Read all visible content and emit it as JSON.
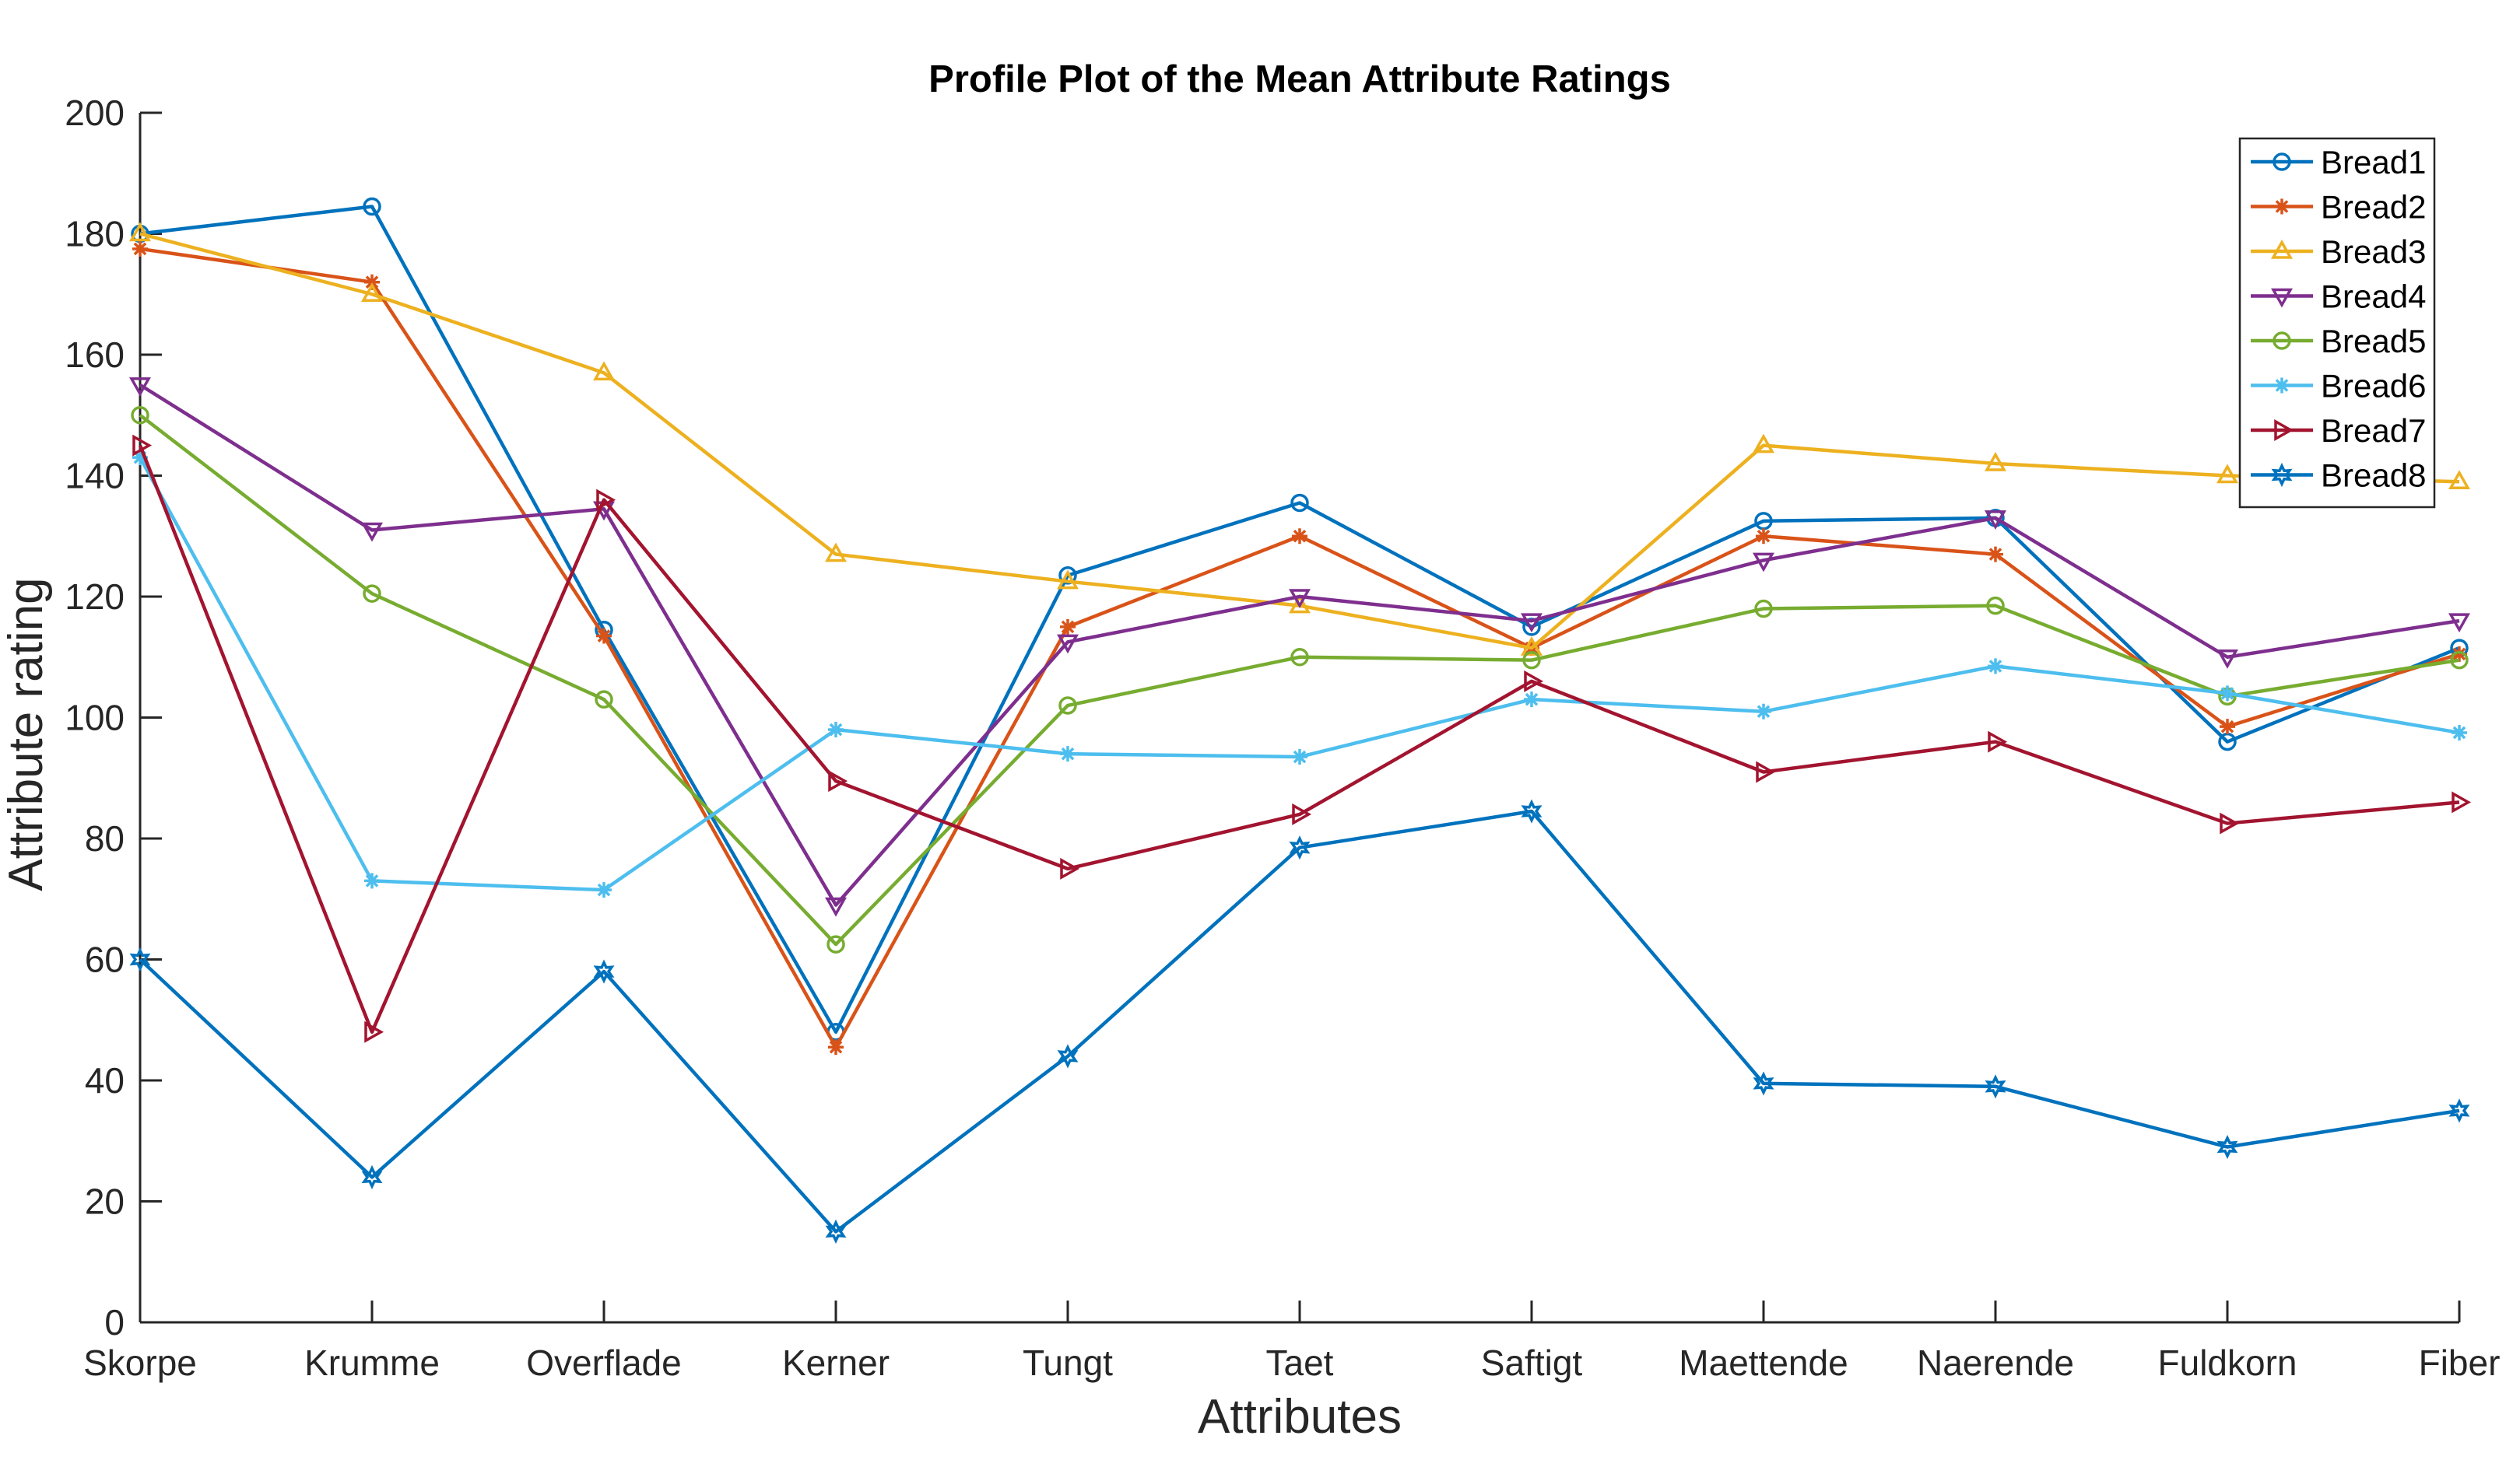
{
  "chart_data": {
    "type": "line",
    "title": "Profile Plot of the Mean Attribute Ratings",
    "xlabel": "Attributes",
    "ylabel": "Attribute rating",
    "categories": [
      "Skorpe",
      "Krumme",
      "Overflade",
      "Kerner",
      "Tungt",
      "Taet",
      "Saftigt",
      "Maettende",
      "Naerende",
      "Fuldkorn",
      "Fiber"
    ],
    "ylim": [
      0,
      200
    ],
    "yticks": [
      0,
      20,
      40,
      60,
      80,
      100,
      120,
      140,
      160,
      180,
      200
    ],
    "grid": false,
    "legend_position": "top-right",
    "series": [
      {
        "name": "Bread1",
        "color": "#0072BD",
        "marker": "circle",
        "values": [
          180,
          184.5,
          114.5,
          48,
          123.5,
          135.5,
          115,
          132.5,
          133,
          96,
          111.5
        ]
      },
      {
        "name": "Bread2",
        "color": "#D95319",
        "marker": "star",
        "values": [
          177.5,
          172,
          113.5,
          45.5,
          115,
          130,
          111.5,
          130,
          127,
          98.5,
          110.5
        ]
      },
      {
        "name": "Bread3",
        "color": "#EDB120",
        "marker": "triangle-up",
        "values": [
          180,
          170,
          157,
          127,
          122.5,
          118.5,
          111.5,
          145,
          142,
          140,
          139
        ]
      },
      {
        "name": "Bread4",
        "color": "#7E2F8E",
        "marker": "triangle-down",
        "values": [
          155,
          131,
          134.5,
          69,
          112.5,
          120,
          116,
          126,
          133,
          110,
          116
        ]
      },
      {
        "name": "Bread5",
        "color": "#77AC30",
        "marker": "circle",
        "values": [
          150,
          120.5,
          103,
          62.5,
          102,
          110,
          109.5,
          118,
          118.5,
          103.5,
          109.5
        ]
      },
      {
        "name": "Bread6",
        "color": "#4DBEEE",
        "marker": "star",
        "values": [
          143,
          73,
          71.5,
          98,
          94,
          93.5,
          103,
          101,
          108.5,
          104,
          97.5
        ]
      },
      {
        "name": "Bread7",
        "color": "#A2142F",
        "marker": "triangle-right",
        "values": [
          145,
          48,
          136,
          89.5,
          75,
          84,
          106,
          91,
          96,
          82.5,
          86
        ]
      },
      {
        "name": "Bread8",
        "color": "#0072BD",
        "marker": "hexagram",
        "values": [
          60,
          24,
          58,
          15,
          44,
          78.5,
          84.5,
          39.5,
          39,
          29,
          35
        ]
      }
    ]
  }
}
